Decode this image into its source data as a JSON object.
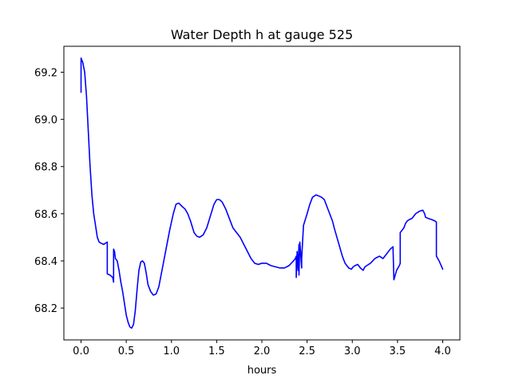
{
  "chart_data": {
    "type": "line",
    "title": "Water Depth h at gauge 525",
    "xlabel": "hours",
    "ylabel": "",
    "xlim": [
      -0.19,
      4.19
    ],
    "ylim": [
      68.065,
      69.31
    ],
    "xticks": [
      0.0,
      0.5,
      1.0,
      1.5,
      2.0,
      2.5,
      3.0,
      3.5,
      4.0
    ],
    "xtick_labels": [
      "0.0",
      "0.5",
      "1.0",
      "1.5",
      "2.0",
      "2.5",
      "3.0",
      "3.5",
      "4.0"
    ],
    "yticks": [
      68.2,
      68.4,
      68.6,
      68.8,
      69.0,
      69.2
    ],
    "ytick_labels": [
      "68.2",
      "68.4",
      "68.6",
      "68.8",
      "69.0",
      "69.2"
    ],
    "grid": false,
    "legend": "none",
    "series": [
      {
        "color": "#0000ff",
        "x": [
          0.0,
          0.0,
          0.02,
          0.04,
          0.06,
          0.08,
          0.1,
          0.12,
          0.14,
          0.16,
          0.18,
          0.2,
          0.22,
          0.25,
          0.27,
          0.29,
          0.29,
          0.32,
          0.35,
          0.36,
          0.36,
          0.37,
          0.38,
          0.4,
          0.42,
          0.44,
          0.46,
          0.48,
          0.5,
          0.52,
          0.54,
          0.56,
          0.58,
          0.6,
          0.62,
          0.64,
          0.66,
          0.68,
          0.7,
          0.72,
          0.74,
          0.77,
          0.8,
          0.83,
          0.86,
          0.9,
          0.94,
          0.98,
          1.02,
          1.05,
          1.08,
          1.12,
          1.15,
          1.18,
          1.21,
          1.25,
          1.28,
          1.31,
          1.35,
          1.39,
          1.43,
          1.47,
          1.5,
          1.53,
          1.56,
          1.6,
          1.64,
          1.68,
          1.72,
          1.76,
          1.8,
          1.84,
          1.88,
          1.92,
          1.96,
          2.0,
          2.05,
          2.1,
          2.15,
          2.2,
          2.25,
          2.3,
          2.35,
          2.37,
          2.38,
          2.38,
          2.39,
          2.4,
          2.41,
          2.41,
          2.42,
          2.44,
          2.44,
          2.46,
          2.5,
          2.53,
          2.56,
          2.6,
          2.63,
          2.66,
          2.69,
          2.72,
          2.75,
          2.78,
          2.8,
          2.83,
          2.86,
          2.89,
          2.92,
          2.94,
          2.96,
          2.99,
          3.01,
          3.03,
          3.06,
          3.09,
          3.12,
          3.14,
          3.16,
          3.2,
          3.25,
          3.3,
          3.34,
          3.38,
          3.42,
          3.45,
          3.46,
          3.49,
          3.52,
          3.53,
          3.53,
          3.57,
          3.59,
          3.61,
          3.63,
          3.66,
          3.7,
          3.74,
          3.78,
          3.8,
          3.81,
          3.84,
          3.88,
          3.91,
          3.93,
          3.93,
          3.96,
          4.0
        ],
        "y": [
          69.115,
          69.26,
          69.24,
          69.2,
          69.1,
          68.95,
          68.8,
          68.68,
          68.6,
          68.55,
          68.5,
          68.48,
          68.475,
          68.47,
          68.475,
          68.48,
          68.345,
          68.34,
          68.33,
          68.31,
          68.45,
          68.44,
          68.41,
          68.4,
          68.36,
          68.31,
          68.27,
          68.22,
          68.17,
          68.14,
          68.12,
          68.115,
          68.13,
          68.19,
          68.28,
          68.36,
          68.395,
          68.4,
          68.39,
          68.35,
          68.3,
          68.27,
          68.255,
          68.26,
          68.29,
          68.37,
          68.45,
          68.53,
          68.6,
          68.64,
          68.645,
          68.63,
          68.62,
          68.6,
          68.57,
          68.52,
          68.505,
          68.5,
          68.51,
          68.54,
          68.59,
          68.64,
          68.66,
          68.66,
          68.65,
          68.62,
          68.58,
          68.54,
          68.52,
          68.5,
          68.47,
          68.44,
          68.41,
          68.39,
          68.385,
          68.39,
          68.39,
          68.38,
          68.375,
          68.37,
          68.37,
          68.38,
          68.4,
          68.41,
          68.42,
          68.33,
          68.44,
          68.36,
          68.47,
          68.34,
          68.48,
          68.37,
          68.41,
          68.55,
          68.6,
          68.64,
          68.67,
          68.68,
          68.675,
          68.67,
          68.66,
          68.63,
          68.6,
          68.57,
          68.54,
          68.5,
          68.46,
          68.42,
          68.39,
          68.38,
          68.37,
          68.365,
          68.375,
          68.38,
          68.385,
          68.37,
          68.36,
          68.375,
          68.38,
          68.39,
          68.41,
          68.42,
          68.41,
          68.43,
          68.45,
          68.46,
          68.32,
          68.36,
          68.38,
          68.39,
          68.52,
          68.54,
          68.56,
          68.57,
          68.575,
          68.58,
          68.6,
          68.61,
          68.615,
          68.6,
          68.585,
          68.58,
          68.575,
          68.57,
          68.565,
          68.42,
          68.4,
          68.365
        ]
      }
    ]
  }
}
